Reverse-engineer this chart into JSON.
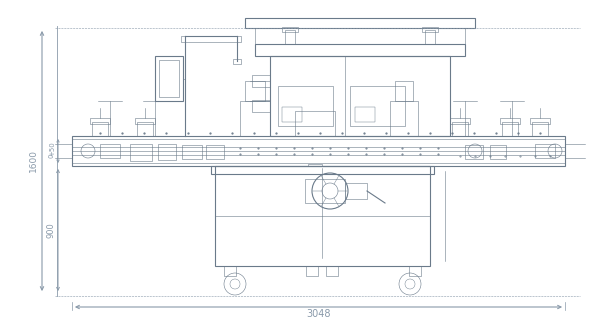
{
  "bg_color": "#ffffff",
  "line_color": "#6a7a8a",
  "dim_color": "#8a9aaa",
  "border_color": "#aabbcc",
  "lw_main": 0.8,
  "lw_thin": 0.4,
  "lw_thick": 1.2,
  "lw_border": 0.5
}
